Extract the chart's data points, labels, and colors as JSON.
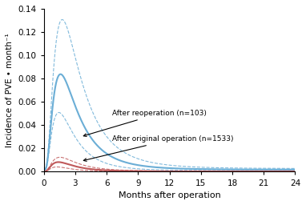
{
  "title": "",
  "xlabel": "Months after operation",
  "ylabel": "Incidence of PVE • month⁻¹",
  "xlim": [
    0,
    24
  ],
  "ylim": [
    0,
    0.14
  ],
  "xticks": [
    0,
    3,
    6,
    9,
    12,
    15,
    18,
    21,
    24
  ],
  "yticks": [
    0.0,
    0.02,
    0.04,
    0.06,
    0.08,
    0.1,
    0.12,
    0.14
  ],
  "reop_peak": 0.082,
  "reop_peak_t": 1.6,
  "reop_constant": 0.0018,
  "reop_decay": 1.2,
  "reop_ci_upper_peak": 0.128,
  "reop_ci_lower_peak": 0.05,
  "orig_peak": 0.008,
  "orig_peak_t": 1.4,
  "orig_constant": 0.0003,
  "orig_decay": 1.3,
  "orig_ci_upper_peak": 0.012,
  "orig_ci_lower_peak": 0.004,
  "color_reop": "#6baed6",
  "color_orig": "#c0595a",
  "label_reop": "After reoperation (n=103)",
  "label_orig": "After original operation (n=1533)",
  "figsize": [
    3.82,
    2.56
  ],
  "dpi": 100
}
